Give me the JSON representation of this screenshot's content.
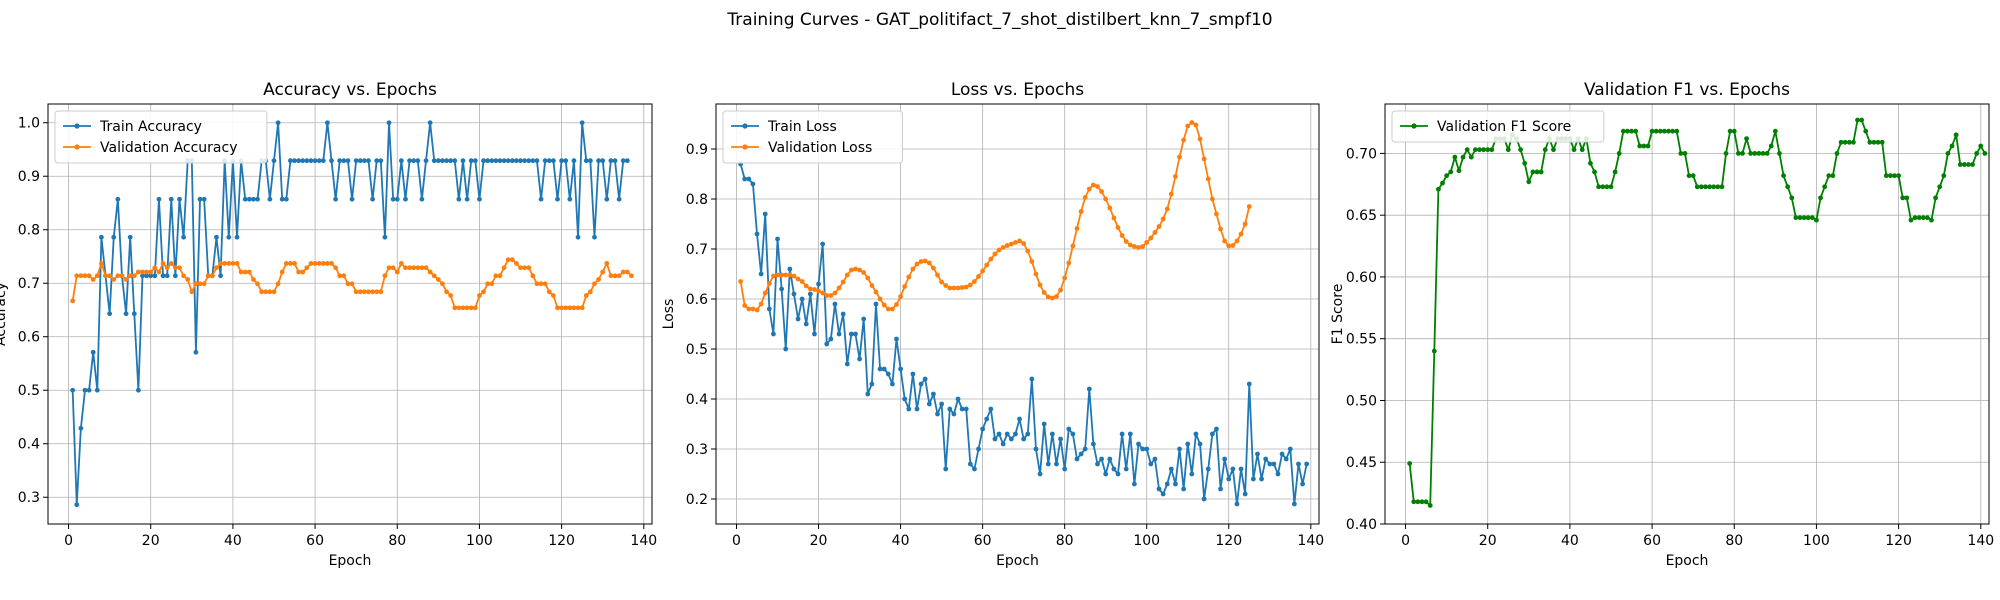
{
  "figure": {
    "suptitle": "Training Curves - GAT_politifact_7_shot_distilbert_knn_7_smpf10"
  },
  "colors": {
    "train": "#1f77b4",
    "val": "#ff7f0e",
    "f1": "#008000",
    "grid": "#b0b0b0"
  },
  "chart_data": [
    {
      "type": "line",
      "title": "Accuracy vs. Epochs",
      "xlabel": "Epoch",
      "ylabel": "Accuracy",
      "xlim": [
        -5,
        142
      ],
      "ylim": [
        0.25,
        1.035
      ],
      "xticks": [
        0,
        20,
        40,
        60,
        80,
        100,
        120,
        140
      ],
      "yticks": [
        0.3,
        0.4,
        0.5,
        0.6,
        0.7,
        0.8,
        0.9,
        1.0
      ],
      "grid": true,
      "legend": "top-left",
      "series": [
        {
          "name": "Train Accuracy",
          "color": "#1f77b4",
          "values": [
            0.5,
            0.286,
            0.429,
            0.5,
            0.5,
            0.571,
            0.5,
            0.786,
            0.714,
            0.643,
            0.786,
            0.857,
            0.714,
            0.643,
            0.786,
            0.643,
            0.5,
            0.714,
            0.714,
            0.714,
            0.714,
            0.857,
            0.714,
            0.714,
            0.857,
            0.714,
            0.857,
            0.786,
            0.929,
            0.929,
            0.571,
            0.857,
            0.857,
            0.714,
            0.714,
            0.786,
            0.714,
            0.929,
            0.786,
            0.929,
            0.786,
            0.929,
            0.857,
            0.857,
            0.857,
            0.857,
            0.929,
            0.929,
            0.857,
            0.929,
            1.0,
            0.857,
            0.857,
            0.929,
            0.929,
            0.929,
            0.929,
            0.929,
            0.929,
            0.929,
            0.929,
            0.929,
            1.0,
            0.929,
            0.857,
            0.929,
            0.929,
            0.929,
            0.857,
            0.929,
            0.929,
            0.929,
            0.929,
            0.857,
            0.929,
            0.929,
            0.786,
            1.0,
            0.857,
            0.857,
            0.929,
            0.857,
            0.929,
            0.929,
            0.929,
            0.857,
            0.929,
            1.0,
            0.929,
            0.929,
            0.929,
            0.929,
            0.929,
            0.929,
            0.857,
            0.929,
            0.857,
            0.929,
            0.929,
            0.857,
            0.929,
            0.929,
            0.929,
            0.929,
            0.929,
            0.929,
            0.929,
            0.929,
            0.929,
            0.929,
            0.929,
            0.929,
            0.929,
            0.929,
            0.857,
            0.929,
            0.929,
            0.929,
            0.857,
            0.929,
            0.929,
            0.857,
            0.929,
            0.786,
            1.0,
            0.929,
            0.929,
            0.786,
            0.929,
            0.929,
            0.857,
            0.929,
            0.929,
            0.857,
            0.929,
            0.929
          ]
        },
        {
          "name": "Validation Accuracy",
          "color": "#ff7f0e",
          "values": [
            0.667,
            0.714,
            0.714,
            0.714,
            0.714,
            0.707,
            0.714,
            0.737,
            0.714,
            0.714,
            0.707,
            0.714,
            0.714,
            0.707,
            0.714,
            0.714,
            0.721,
            0.721,
            0.721,
            0.721,
            0.729,
            0.721,
            0.737,
            0.729,
            0.737,
            0.729,
            0.729,
            0.714,
            0.707,
            0.684,
            0.699,
            0.699,
            0.699,
            0.714,
            0.714,
            0.729,
            0.737,
            0.737,
            0.737,
            0.737,
            0.737,
            0.721,
            0.721,
            0.721,
            0.707,
            0.699,
            0.684,
            0.684,
            0.684,
            0.684,
            0.699,
            0.721,
            0.737,
            0.737,
            0.737,
            0.721,
            0.721,
            0.729,
            0.737,
            0.737,
            0.737,
            0.737,
            0.737,
            0.737,
            0.729,
            0.714,
            0.714,
            0.699,
            0.699,
            0.684,
            0.684,
            0.684,
            0.684,
            0.684,
            0.684,
            0.684,
            0.714,
            0.729,
            0.729,
            0.721,
            0.737,
            0.729,
            0.729,
            0.729,
            0.729,
            0.729,
            0.729,
            0.721,
            0.714,
            0.707,
            0.699,
            0.684,
            0.677,
            0.654,
            0.654,
            0.654,
            0.654,
            0.654,
            0.654,
            0.677,
            0.684,
            0.699,
            0.699,
            0.714,
            0.714,
            0.729,
            0.744,
            0.744,
            0.737,
            0.729,
            0.729,
            0.729,
            0.714,
            0.699,
            0.699,
            0.699,
            0.684,
            0.677,
            0.654,
            0.654,
            0.654,
            0.654,
            0.654,
            0.654,
            0.654,
            0.677,
            0.684,
            0.699,
            0.707,
            0.721,
            0.737,
            0.714,
            0.714,
            0.714,
            0.721,
            0.721,
            0.714
          ]
        }
      ]
    },
    {
      "type": "line",
      "title": "Loss vs. Epochs",
      "xlabel": "Epoch",
      "ylabel": "Loss",
      "xlim": [
        -5,
        142
      ],
      "ylim": [
        0.15,
        0.99
      ],
      "xticks": [
        0,
        20,
        40,
        60,
        80,
        100,
        120,
        140
      ],
      "yticks": [
        0.2,
        0.3,
        0.4,
        0.5,
        0.6,
        0.7,
        0.8,
        0.9
      ],
      "grid": true,
      "legend": "top-left",
      "series": [
        {
          "name": "Train Loss",
          "color": "#1f77b4",
          "values": [
            0.87,
            0.84,
            0.84,
            0.83,
            0.73,
            0.65,
            0.77,
            0.58,
            0.53,
            0.72,
            0.62,
            0.5,
            0.66,
            0.61,
            0.56,
            0.6,
            0.55,
            0.61,
            0.53,
            0.63,
            0.71,
            0.51,
            0.52,
            0.59,
            0.53,
            0.57,
            0.47,
            0.53,
            0.53,
            0.48,
            0.56,
            0.41,
            0.43,
            0.59,
            0.46,
            0.46,
            0.45,
            0.43,
            0.52,
            0.46,
            0.4,
            0.38,
            0.45,
            0.38,
            0.43,
            0.44,
            0.39,
            0.41,
            0.37,
            0.39,
            0.26,
            0.38,
            0.37,
            0.4,
            0.38,
            0.38,
            0.27,
            0.26,
            0.3,
            0.34,
            0.36,
            0.38,
            0.32,
            0.33,
            0.31,
            0.33,
            0.32,
            0.33,
            0.36,
            0.32,
            0.33,
            0.44,
            0.3,
            0.25,
            0.35,
            0.27,
            0.33,
            0.27,
            0.32,
            0.26,
            0.34,
            0.33,
            0.28,
            0.29,
            0.3,
            0.42,
            0.31,
            0.27,
            0.28,
            0.25,
            0.28,
            0.26,
            0.25,
            0.33,
            0.26,
            0.33,
            0.23,
            0.31,
            0.3,
            0.3,
            0.27,
            0.28,
            0.22,
            0.21,
            0.23,
            0.26,
            0.23,
            0.3,
            0.22,
            0.31,
            0.25,
            0.33,
            0.31,
            0.2,
            0.26,
            0.33,
            0.34,
            0.22,
            0.28,
            0.24,
            0.26,
            0.19,
            0.26,
            0.21,
            0.43,
            0.24,
            0.29,
            0.24,
            0.28,
            0.27,
            0.27,
            0.25,
            0.29,
            0.28,
            0.3,
            0.19,
            0.27,
            0.23,
            0.27
          ]
        },
        {
          "name": "Validation Loss",
          "color": "#ff7f0e",
          "values": [
            0.635,
            0.587,
            0.58,
            0.58,
            0.578,
            0.59,
            0.612,
            0.631,
            0.646,
            0.648,
            0.648,
            0.648,
            0.648,
            0.646,
            0.64,
            0.635,
            0.626,
            0.62,
            0.619,
            0.616,
            0.612,
            0.607,
            0.607,
            0.612,
            0.622,
            0.634,
            0.648,
            0.658,
            0.66,
            0.658,
            0.653,
            0.642,
            0.627,
            0.614,
            0.6,
            0.588,
            0.58,
            0.58,
            0.589,
            0.605,
            0.625,
            0.644,
            0.66,
            0.67,
            0.675,
            0.676,
            0.672,
            0.662,
            0.648,
            0.634,
            0.627,
            0.622,
            0.622,
            0.622,
            0.623,
            0.624,
            0.628,
            0.635,
            0.645,
            0.656,
            0.668,
            0.68,
            0.69,
            0.698,
            0.703,
            0.707,
            0.71,
            0.713,
            0.716,
            0.711,
            0.696,
            0.675,
            0.65,
            0.628,
            0.613,
            0.604,
            0.602,
            0.605,
            0.618,
            0.642,
            0.672,
            0.706,
            0.741,
            0.775,
            0.803,
            0.82,
            0.828,
            0.825,
            0.815,
            0.8,
            0.782,
            0.762,
            0.743,
            0.727,
            0.715,
            0.708,
            0.705,
            0.703,
            0.705,
            0.713,
            0.722,
            0.733,
            0.745,
            0.76,
            0.78,
            0.81,
            0.845,
            0.884,
            0.918,
            0.946,
            0.953,
            0.948,
            0.92,
            0.88,
            0.84,
            0.8,
            0.77,
            0.74,
            0.716,
            0.706,
            0.707,
            0.716,
            0.73,
            0.75,
            0.785
          ]
        }
      ]
    },
    {
      "type": "line",
      "title": "Validation F1 vs. Epochs",
      "xlabel": "Epoch",
      "ylabel": "F1 Score",
      "xlim": [
        -5,
        142
      ],
      "ylim": [
        0.4,
        0.74
      ],
      "xticks": [
        0,
        20,
        40,
        60,
        80,
        100,
        120,
        140
      ],
      "yticks": [
        0.4,
        0.45,
        0.5,
        0.55,
        0.6,
        0.65,
        0.7
      ],
      "ytick_labels": [
        "0.40",
        "0.45",
        "0.50",
        "0.55",
        "0.60",
        "0.65",
        "0.70"
      ],
      "grid": true,
      "legend": "top-left",
      "series": [
        {
          "name": "Validation F1 Score",
          "color": "#008000",
          "values": [
            0.449,
            0.418,
            0.418,
            0.418,
            0.418,
            0.415,
            0.54,
            0.671,
            0.676,
            0.682,
            0.685,
            0.697,
            0.686,
            0.697,
            0.703,
            0.697,
            0.703,
            0.703,
            0.703,
            0.703,
            0.703,
            0.712,
            0.712,
            0.712,
            0.703,
            0.715,
            0.712,
            0.703,
            0.692,
            0.677,
            0.685,
            0.685,
            0.685,
            0.703,
            0.712,
            0.703,
            0.712,
            0.712,
            0.712,
            0.712,
            0.703,
            0.712,
            0.703,
            0.712,
            0.692,
            0.685,
            0.673,
            0.673,
            0.673,
            0.673,
            0.685,
            0.7,
            0.718,
            0.718,
            0.718,
            0.718,
            0.706,
            0.706,
            0.706,
            0.718,
            0.718,
            0.718,
            0.718,
            0.718,
            0.718,
            0.718,
            0.7,
            0.7,
            0.682,
            0.682,
            0.673,
            0.673,
            0.673,
            0.673,
            0.673,
            0.673,
            0.673,
            0.7,
            0.718,
            0.718,
            0.7,
            0.7,
            0.712,
            0.7,
            0.7,
            0.7,
            0.7,
            0.7,
            0.706,
            0.718,
            0.7,
            0.682,
            0.673,
            0.664,
            0.648,
            0.648,
            0.648,
            0.648,
            0.648,
            0.646,
            0.664,
            0.673,
            0.682,
            0.682,
            0.7,
            0.709,
            0.709,
            0.709,
            0.709,
            0.727,
            0.727,
            0.718,
            0.709,
            0.709,
            0.709,
            0.709,
            0.682,
            0.682,
            0.682,
            0.682,
            0.664,
            0.664,
            0.646,
            0.648,
            0.648,
            0.648,
            0.648,
            0.646,
            0.664,
            0.673,
            0.682,
            0.7,
            0.706,
            0.715,
            0.691,
            0.691,
            0.691,
            0.691,
            0.7,
            0.706,
            0.7
          ]
        }
      ]
    }
  ]
}
